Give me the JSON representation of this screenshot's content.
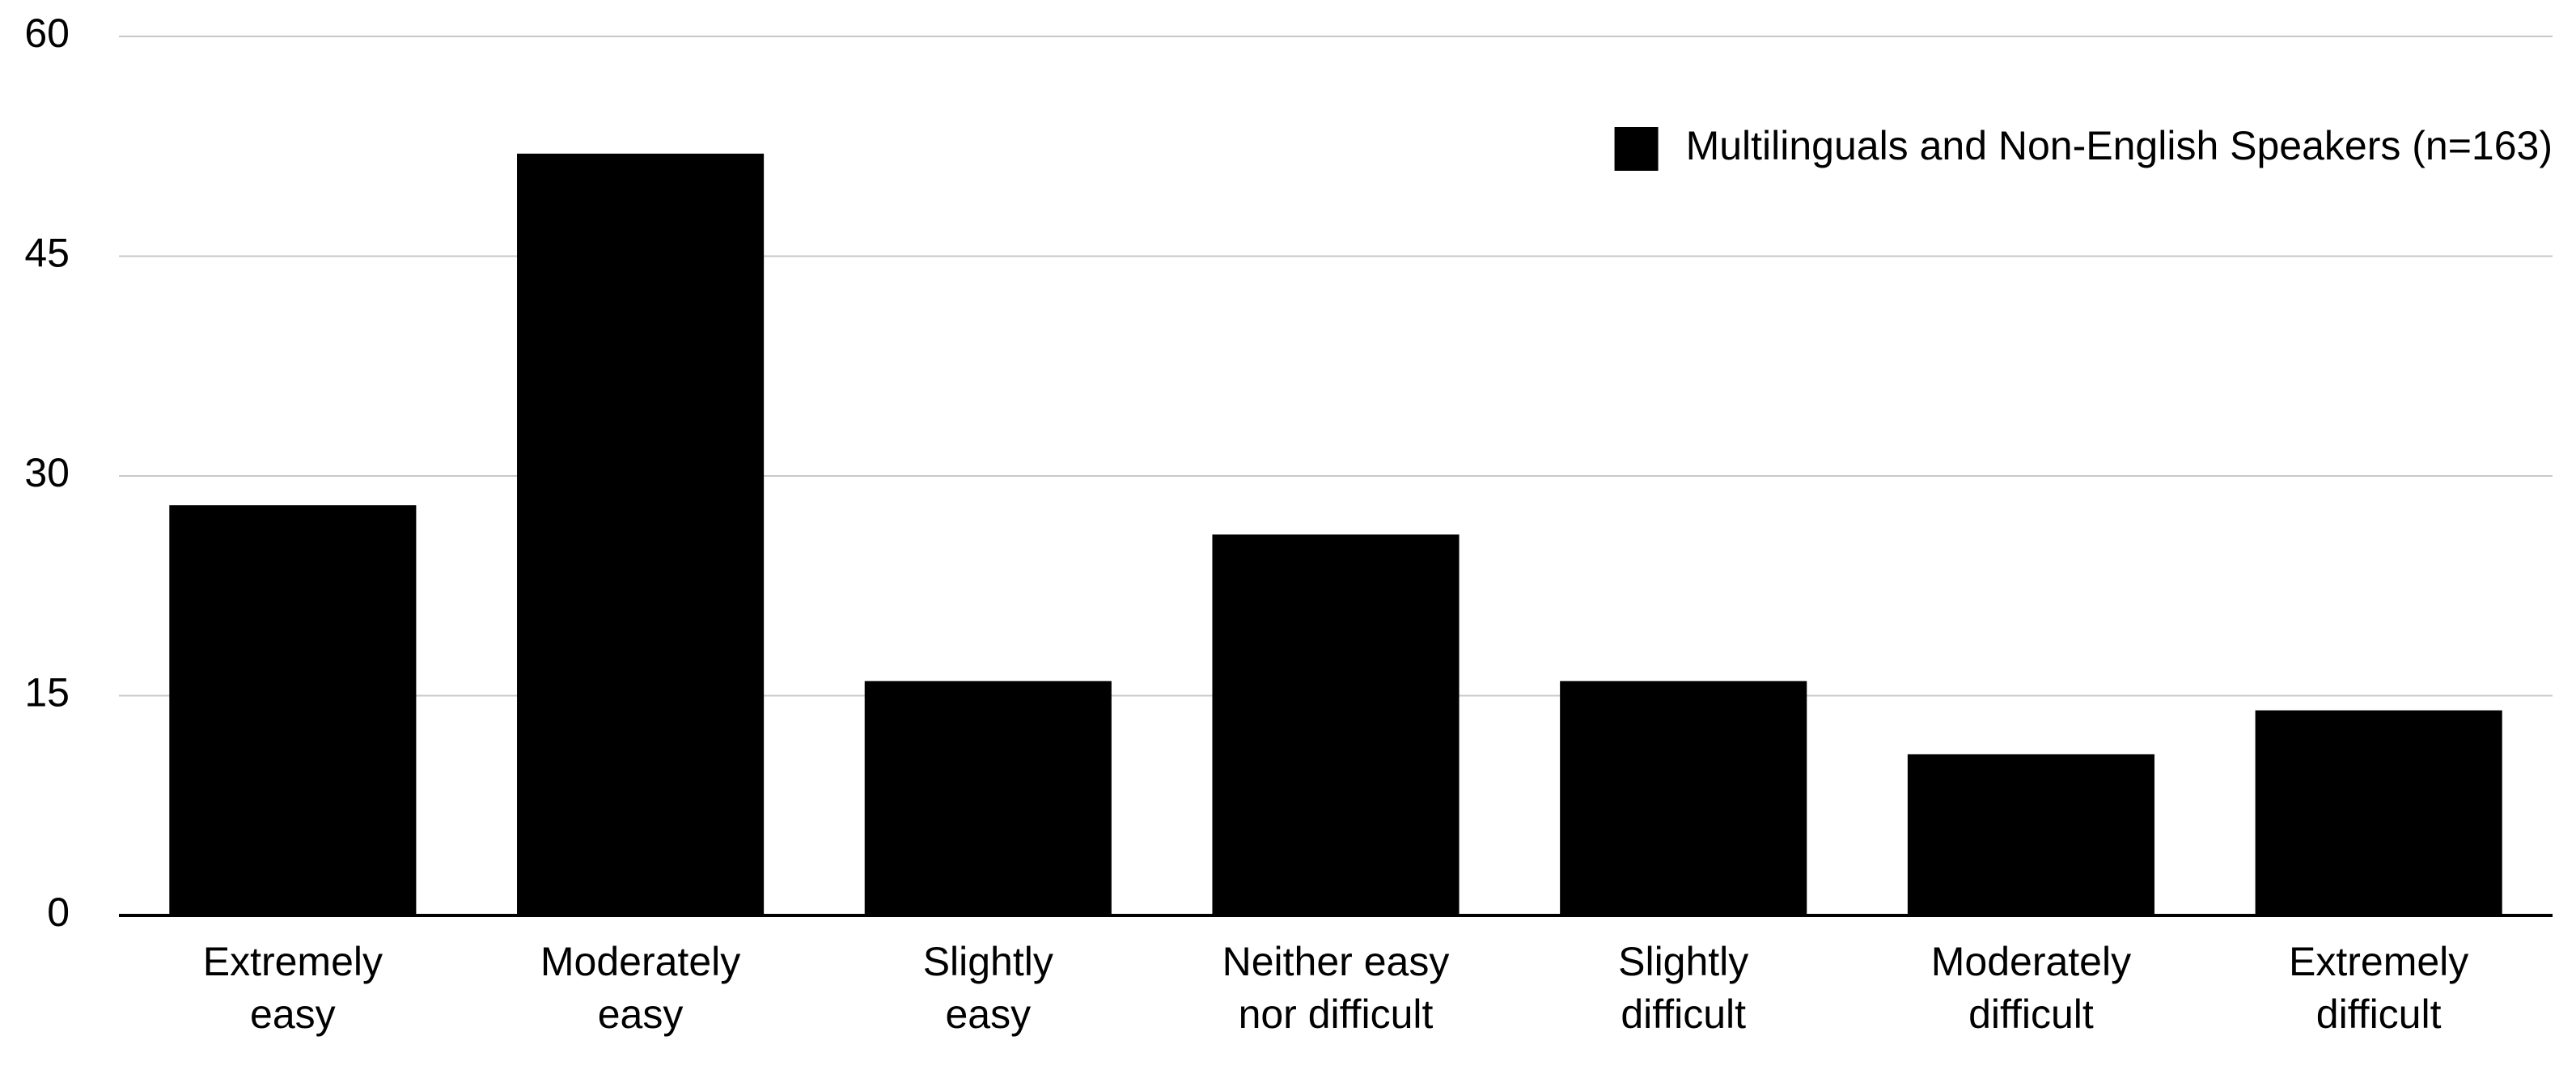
{
  "chart_data": {
    "type": "bar",
    "categories": [
      "Extremely\neasy",
      "Moderately\neasy",
      "Slightly\neasy",
      "Neither easy\nnor difficult",
      "Slightly\ndifficult",
      "Moderately\ndifficult",
      "Extremely\ndifficult"
    ],
    "series": [
      {
        "name": "Multilinguals and Non-English Speakers (n=163)",
        "color": "#000000",
        "values": [
          28,
          52,
          16,
          26,
          16,
          11,
          14
        ]
      }
    ],
    "ylim": [
      0,
      60
    ],
    "yticks": [
      0,
      15,
      30,
      45,
      60
    ],
    "grid": true,
    "legend": "top-right"
  }
}
